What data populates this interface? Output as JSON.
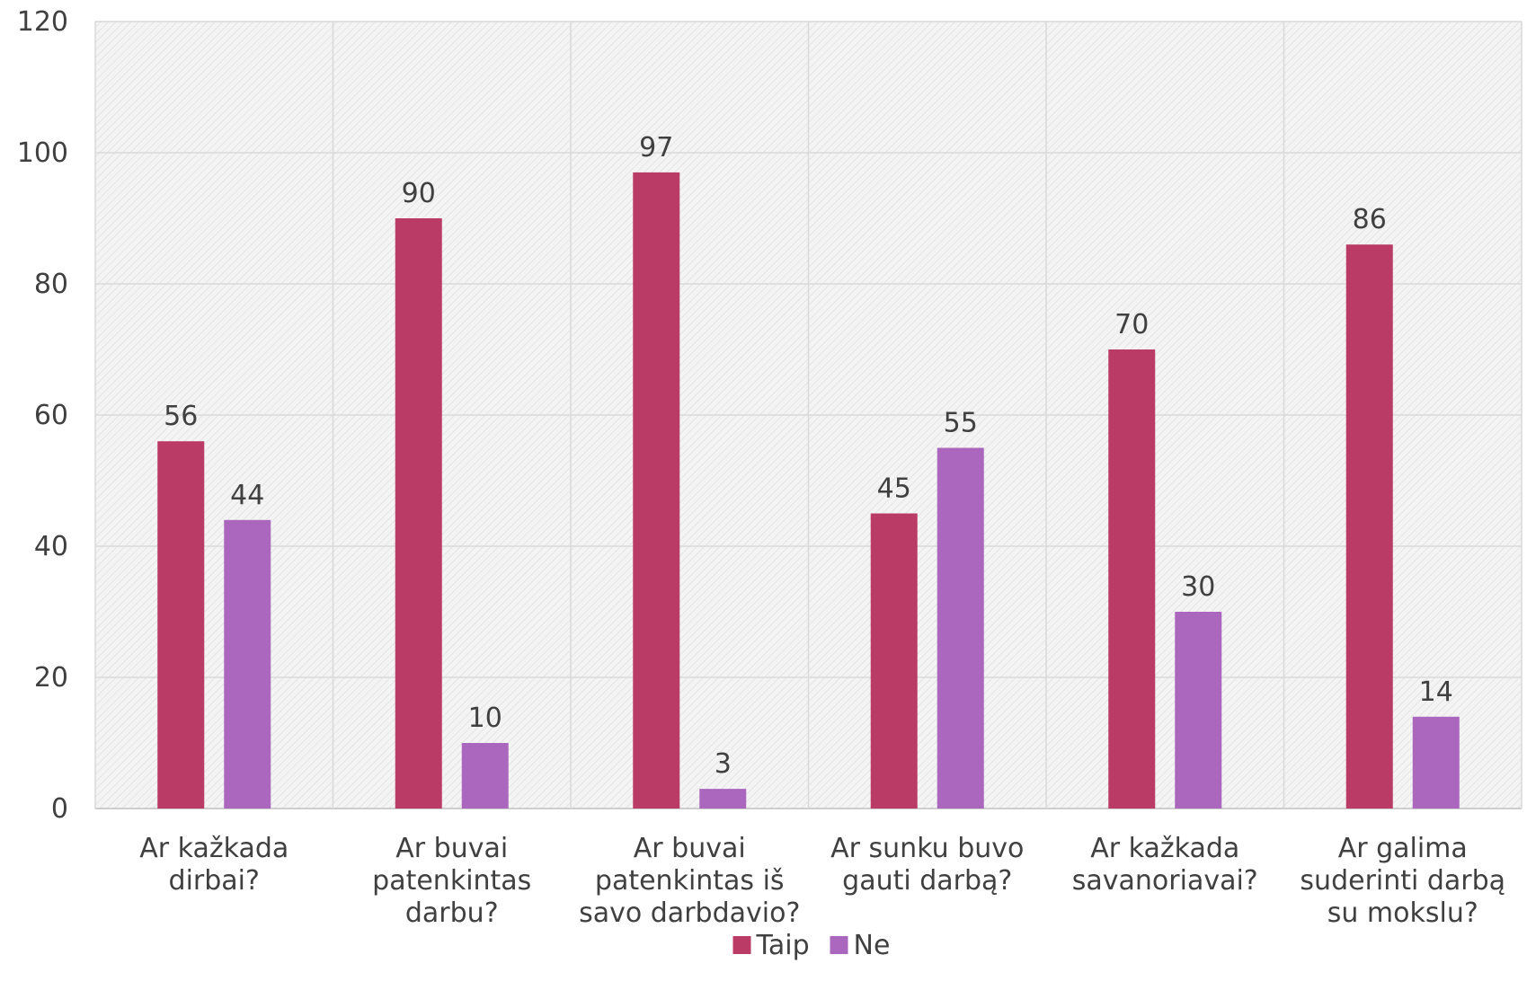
{
  "chart_data": {
    "type": "bar",
    "categories": [
      [
        "Ar kažkada",
        "dirbai?"
      ],
      [
        "Ar buvai",
        "patenkintas",
        "darbu?"
      ],
      [
        "Ar buvai",
        "patenkintas iš",
        "savo darbdavio?"
      ],
      [
        "Ar sunku buvo",
        "gauti darbą?"
      ],
      [
        "Ar kažkada",
        "savanoriavai?"
      ],
      [
        "Ar galima",
        "suderinti darbą",
        "su mokslu?"
      ]
    ],
    "series": [
      {
        "name": "Taip",
        "color": "#bb3b67",
        "values": [
          56,
          90,
          97,
          45,
          70,
          86
        ]
      },
      {
        "name": "Ne",
        "color": "#aa67bd",
        "values": [
          44,
          10,
          3,
          55,
          30,
          14
        ]
      }
    ],
    "ylim": [
      0,
      120
    ],
    "yticks": [
      "0",
      "20",
      "40",
      "60",
      "80",
      "100",
      "120"
    ],
    "ytick_values": [
      0,
      20,
      40,
      60,
      80,
      100,
      120
    ],
    "grid": true,
    "plot_background": "hatched light gray",
    "legend_position": "bottom-center",
    "data_labels": true,
    "title": "",
    "xlabel": "",
    "ylabel": ""
  }
}
